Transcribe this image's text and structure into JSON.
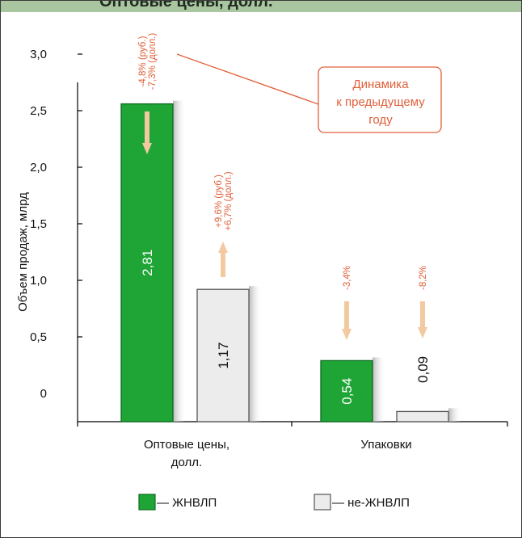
{
  "header": {
    "title": "Оптовые цены, долл."
  },
  "colors": {
    "zhnvlp": "#1ea535",
    "non_zhnvlp": "#ececec",
    "annotation": "#e0603a",
    "arrow": "#f3c9a0",
    "header_band": "#a9c6a0"
  },
  "callout": {
    "lines": [
      "Динамика",
      "к предыдущему",
      "году"
    ]
  },
  "legend": [
    {
      "label": "— ЖНВЛП",
      "color": "#1ea535"
    },
    {
      "label": "— не-ЖНВЛП",
      "color": "#ececec"
    }
  ],
  "chart_data": {
    "type": "bar",
    "ylabel": "Объем продаж, млрд",
    "ylim": [
      0,
      3.0
    ],
    "yticks": [
      "0",
      "0,5",
      "1,0",
      "1,5",
      "2,0",
      "2,5",
      "3,0"
    ],
    "categories": [
      {
        "lines": [
          "Оптовые цены,",
          "долл."
        ]
      },
      {
        "lines": [
          "Упаковки"
        ]
      }
    ],
    "series": [
      {
        "name": "ЖНВЛП",
        "values": [
          2.81,
          0.54
        ],
        "labels": [
          "2,81",
          "0,54"
        ]
      },
      {
        "name": "не-ЖНВЛП",
        "values": [
          1.17,
          0.09
        ],
        "labels": [
          "1,17",
          "0,09"
        ]
      }
    ],
    "changes": [
      {
        "series": 0,
        "category": 0,
        "lines": [
          "-4,8% (руб.)",
          "-7,3% (долл.)"
        ],
        "direction": "down"
      },
      {
        "series": 1,
        "category": 0,
        "lines": [
          "+9,6% (руб.)",
          "+6,7% (долл.)"
        ],
        "direction": "up"
      },
      {
        "series": 0,
        "category": 1,
        "lines": [
          "-3,4%"
        ],
        "direction": "down"
      },
      {
        "series": 1,
        "category": 1,
        "lines": [
          "-8,2%"
        ],
        "direction": "down"
      }
    ]
  }
}
